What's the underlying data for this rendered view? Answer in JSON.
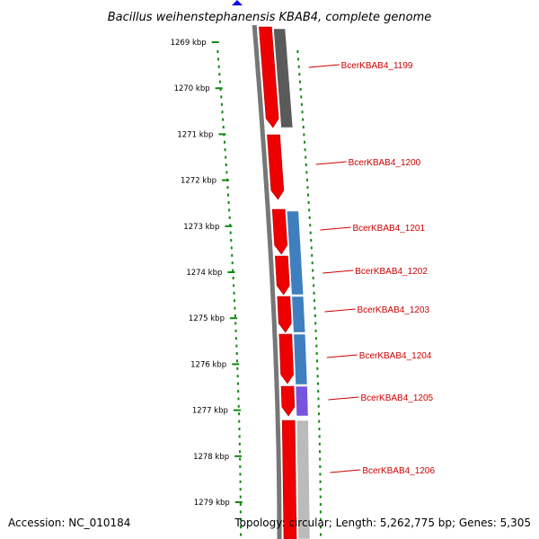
{
  "title": "Bacillus weihenstephanensis KBAB4, complete genome",
  "footer": {
    "accession": "Accession: NC_010184",
    "topology": "Topology: circular; Length: 5,262,775 bp; Genes: 5,305"
  },
  "axis": {
    "unit": "kbp",
    "tick_labels": [
      "1269 kbp",
      "1270 kbp",
      "1271 kbp",
      "1272 kbp",
      "1273 kbp",
      "1274 kbp",
      "1275 kbp",
      "1276 kbp",
      "1277 kbp",
      "1278 kbp",
      "1279 kbp"
    ]
  },
  "gene_labels": [
    "BcerKBAB4_1199",
    "BcerKBAB4_1200",
    "BcerKBAB4_1201",
    "BcerKBAB4_1202",
    "BcerKBAB4_1203",
    "BcerKBAB4_1204",
    "BcerKBAB4_1205",
    "BcerKBAB4_1206"
  ],
  "colors": {
    "cds": "#ee0000",
    "backbone": "#777777",
    "tick": "#118811",
    "label": "#cc0000",
    "blast_hits": [
      "#5a5a5a",
      "#3f7fbf",
      "#3f7fbf",
      "#3f7fbf",
      "#3f7fbf",
      "#7755dd",
      "#bbbbbb"
    ],
    "start_marker": "#0000ee"
  }
}
